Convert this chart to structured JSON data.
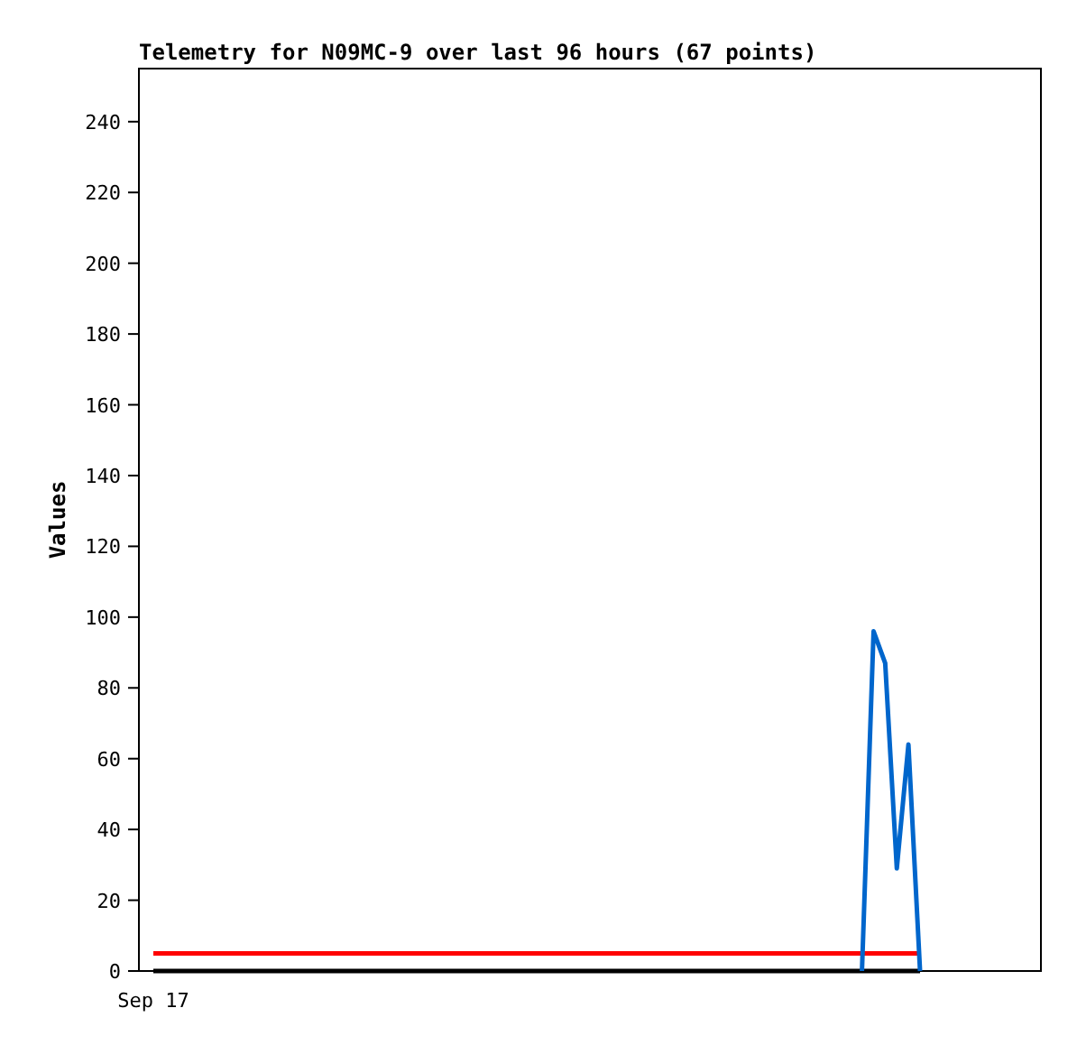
{
  "chart_data": {
    "type": "line",
    "title": "Telemetry for N09MC-9 over last 96 hours (67 points)",
    "ylabel": "Values",
    "categories": [
      "Sep 17",
      null,
      null,
      null,
      null,
      null,
      null,
      null,
      null,
      null,
      null,
      null,
      null,
      null,
      null,
      null,
      null,
      null,
      null,
      null,
      null,
      null,
      null,
      null,
      null,
      null,
      null,
      null,
      null,
      null,
      null,
      null,
      null,
      null,
      null,
      null,
      null,
      null,
      null,
      null,
      null,
      null,
      null,
      null,
      null,
      null,
      null,
      null,
      null,
      null,
      null,
      null,
      null,
      null,
      null,
      null,
      null,
      null,
      null,
      null,
      null,
      null,
      null,
      null,
      null,
      null,
      null
    ],
    "ylim": [
      0,
      255
    ],
    "yticks": [
      0,
      20,
      40,
      60,
      80,
      100,
      120,
      140,
      160,
      180,
      200,
      220,
      240
    ],
    "grid": false,
    "series": [
      {
        "color": "#ff0000",
        "values": [
          5,
          5,
          5,
          5,
          5,
          5,
          5,
          5,
          5,
          5,
          5,
          5,
          5,
          5,
          5,
          5,
          5,
          5,
          5,
          5,
          5,
          5,
          5,
          5,
          5,
          5,
          5,
          5,
          5,
          5,
          5,
          5,
          5,
          5,
          5,
          5,
          5,
          5,
          5,
          5,
          5,
          5,
          5,
          5,
          5,
          5,
          5,
          5,
          5,
          5,
          5,
          5,
          5,
          5,
          5,
          5,
          5,
          5,
          5,
          5,
          5,
          5,
          5,
          5,
          5,
          5,
          5
        ]
      },
      {
        "color": "#000000",
        "values": [
          0,
          0,
          0,
          0,
          0,
          0,
          0,
          0,
          0,
          0,
          0,
          0,
          0,
          0,
          0,
          0,
          0,
          0,
          0,
          0,
          0,
          0,
          0,
          0,
          0,
          0,
          0,
          0,
          0,
          0,
          0,
          0,
          0,
          0,
          0,
          0,
          0,
          0,
          0,
          0,
          0,
          0,
          0,
          0,
          0,
          0,
          0,
          0,
          0,
          0,
          0,
          0,
          0,
          0,
          0,
          0,
          0,
          0,
          0,
          0,
          0,
          0,
          0,
          0,
          0,
          0,
          0
        ]
      },
      {
        "color": "#0066cc",
        "values": [
          null,
          null,
          null,
          null,
          null,
          null,
          null,
          null,
          null,
          null,
          null,
          null,
          null,
          null,
          null,
          null,
          null,
          null,
          null,
          null,
          null,
          null,
          null,
          null,
          null,
          null,
          null,
          null,
          null,
          null,
          null,
          null,
          null,
          null,
          null,
          null,
          null,
          null,
          null,
          null,
          null,
          null,
          null,
          null,
          null,
          null,
          null,
          null,
          null,
          null,
          null,
          null,
          null,
          null,
          null,
          null,
          null,
          null,
          null,
          null,
          null,
          0,
          96,
          87,
          29,
          64,
          0
        ]
      }
    ]
  }
}
